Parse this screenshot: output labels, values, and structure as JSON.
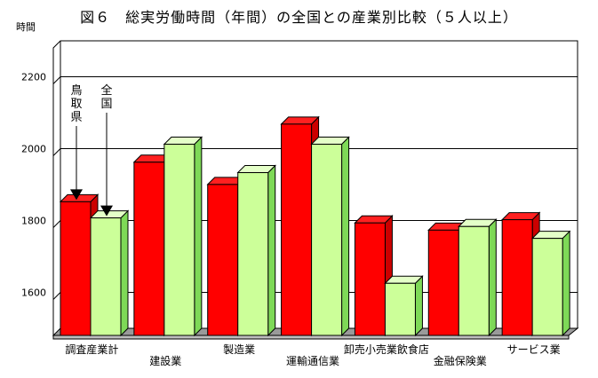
{
  "chart_data": {
    "type": "bar",
    "title": "図６　総実労働時間（年間）の全国との産業別比較（５人以上）",
    "ylabel": "時間",
    "ylim": [
      1500,
      2300
    ],
    "yticks": [
      1600,
      1800,
      2000,
      2200
    ],
    "grid": true,
    "categories": [
      "調査産業計",
      "建設業",
      "製造業",
      "運輸通信業",
      "卸売小売業飲食店",
      "金融保険業",
      "サービス業"
    ],
    "series": [
      {
        "name": "鳥取県",
        "color": "#ff0000",
        "values": [
          1872,
          1982,
          1920,
          2088,
          1813,
          1793,
          1822
        ]
      },
      {
        "name": "全国",
        "color": "#ccff99",
        "values": [
          1827,
          2032,
          1953,
          2032,
          1645,
          1803,
          1770
        ]
      }
    ],
    "annotations": [
      {
        "label": "鳥取県",
        "target": "series_0_category_0"
      },
      {
        "label": "全国",
        "target": "series_1_category_0"
      }
    ]
  }
}
